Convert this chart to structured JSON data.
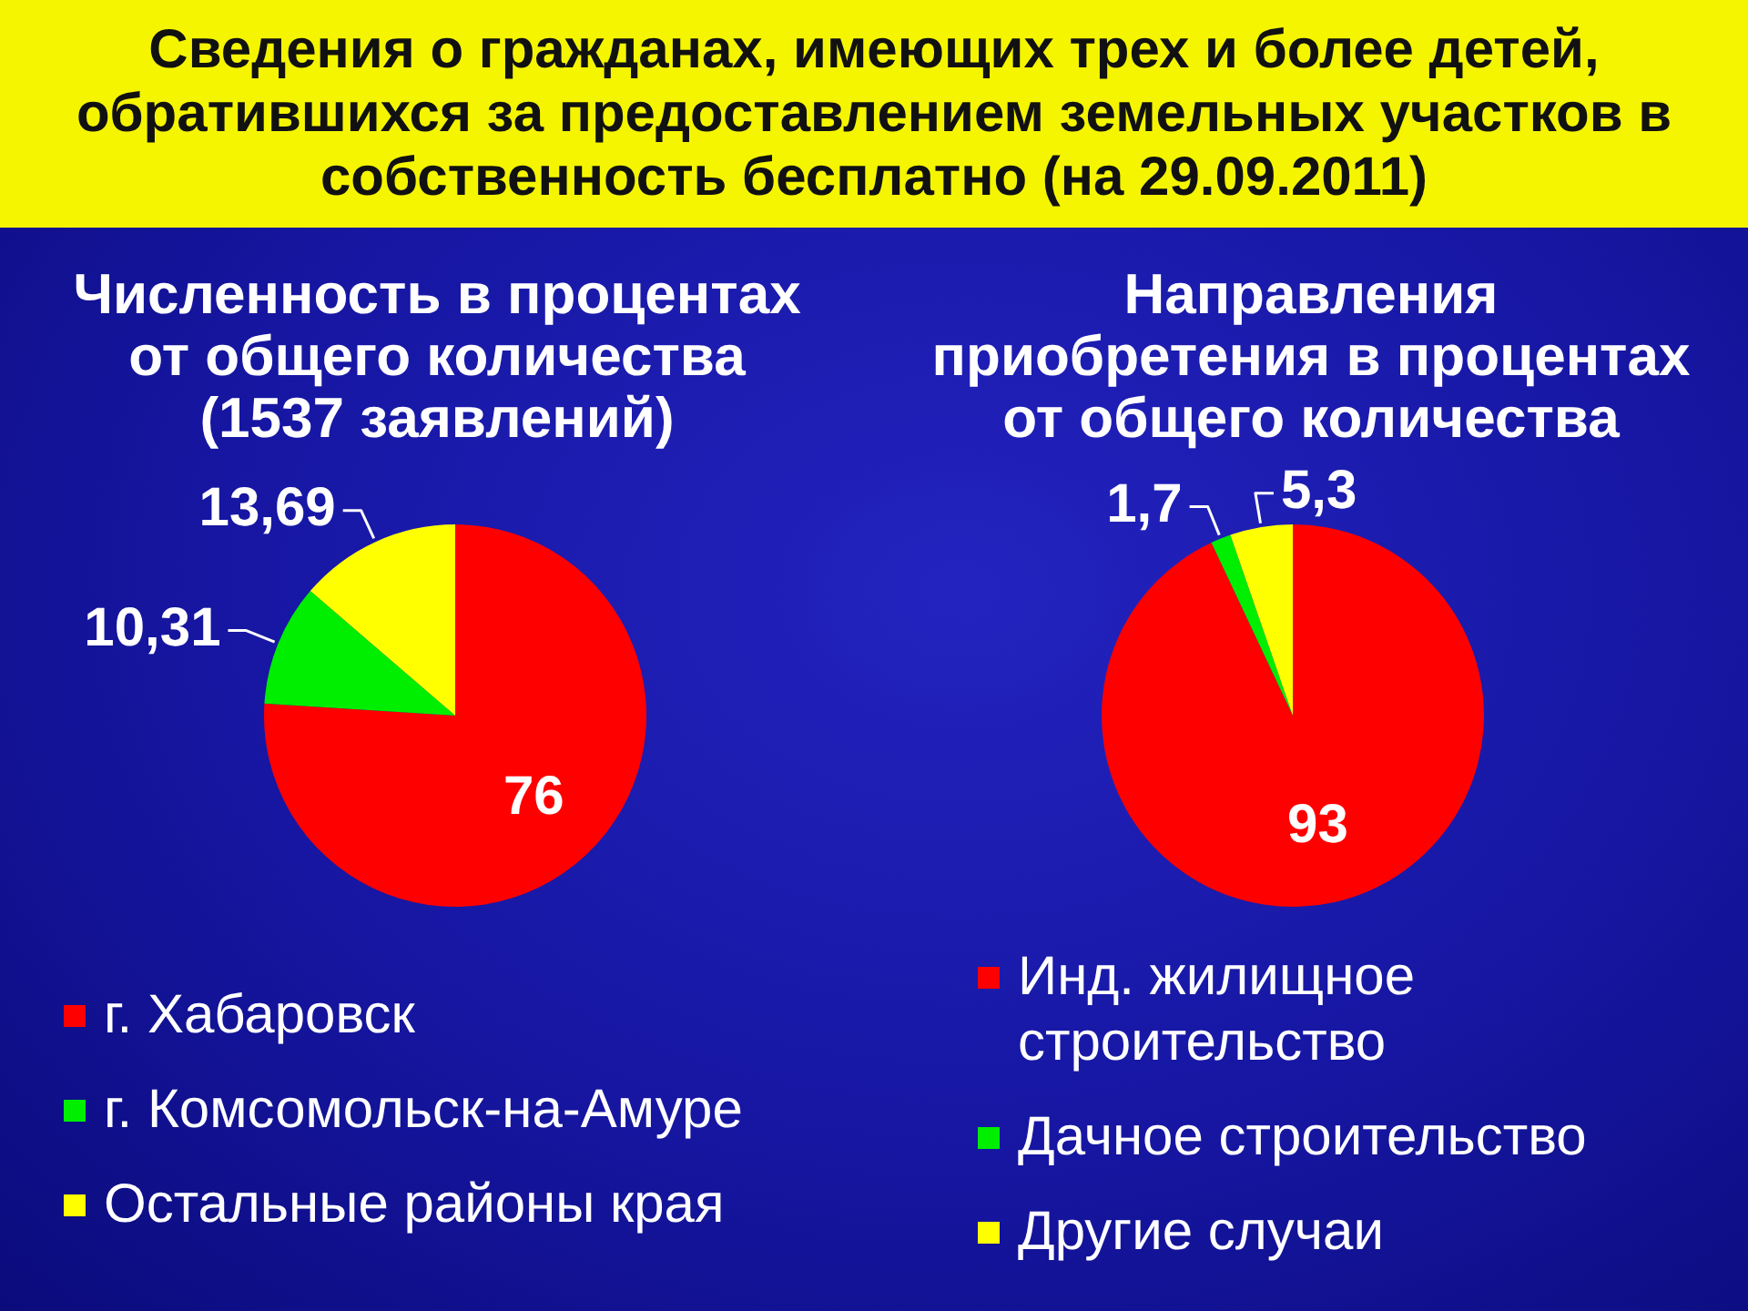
{
  "chart_data": [
    {
      "type": "pie",
      "title": "Сведения о гражданах, имеющих трех и более детей, обратившихся за предоставлением земельных участков в собственность бесплатно (на 29.09.2011)",
      "subtitle": "Численность в процентах от общего количества (1537 заявлений)",
      "categories": [
        "г. Хабаровск",
        "г. Комсомольск-на-Амуре",
        "Остальные районы края"
      ],
      "values": [
        76,
        10.31,
        13.69
      ],
      "value_labels": [
        "76",
        "10,31",
        "13,69"
      ],
      "colors": [
        "#ff0000",
        "#00ee00",
        "#ffff00"
      ],
      "legend": "bottom"
    },
    {
      "type": "pie",
      "title": "Направления приобретения в процентах от общего количества",
      "categories": [
        "Инд. жилищное строительство",
        "Дачное строительство",
        "Другие случаи"
      ],
      "values": [
        93,
        1.7,
        5.3
      ],
      "value_labels": [
        "93",
        "1,7",
        "5,3"
      ],
      "colors": [
        "#ff0000",
        "#00ee00",
        "#ffff00"
      ],
      "legend": "bottom"
    }
  ]
}
